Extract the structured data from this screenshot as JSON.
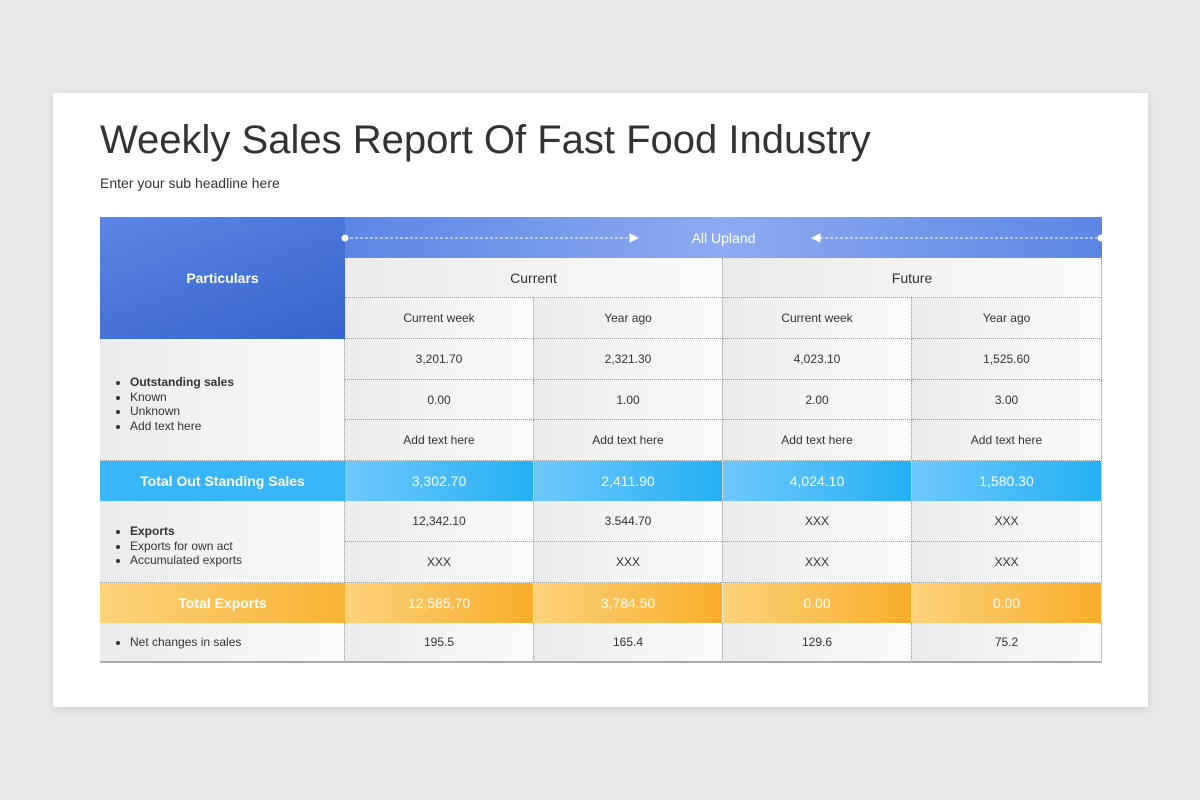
{
  "header": {
    "title": "Weekly Sales Report Of Fast Food Industry",
    "subtitle": "Enter your sub headline here"
  },
  "table": {
    "corner": "Particulars",
    "group_header": "All Upland",
    "groups": [
      "Current",
      "Future"
    ],
    "subheaders": [
      "Current week",
      "Year ago",
      "Current week",
      "Year ago"
    ],
    "outstanding": {
      "bullets": [
        "Outstanding sales",
        "Known",
        "Unknown",
        "Add text here"
      ],
      "rows": [
        [
          "3,201.70",
          "2,321.30",
          "4,023.10",
          "1,525.60"
        ],
        [
          "0.00",
          "1.00",
          "2.00",
          "3.00"
        ],
        [
          "Add text here",
          "Add text here",
          "Add text here",
          "Add text here"
        ]
      ]
    },
    "total_outstanding": {
      "label": "Total Out Standing Sales",
      "values": [
        "3,302.70",
        "2,411.90",
        "4,024.10",
        "1,580.30"
      ]
    },
    "exports": {
      "bullets": [
        "Exports",
        "Exports for own act",
        "Accumulated exports"
      ],
      "rows": [
        [
          "12,342.10",
          "3.544.70",
          "XXX",
          "XXX"
        ],
        [
          "XXX",
          "XXX",
          "XXX",
          "XXX"
        ]
      ]
    },
    "total_exports": {
      "label": "Total Exports",
      "values": [
        "12,585,70",
        "3,784.50",
        "0.00",
        "0.00"
      ]
    },
    "net_change": {
      "label": "Net changes in sales",
      "values": [
        "195.5",
        "165.4",
        "129.6",
        "75.2"
      ]
    }
  }
}
